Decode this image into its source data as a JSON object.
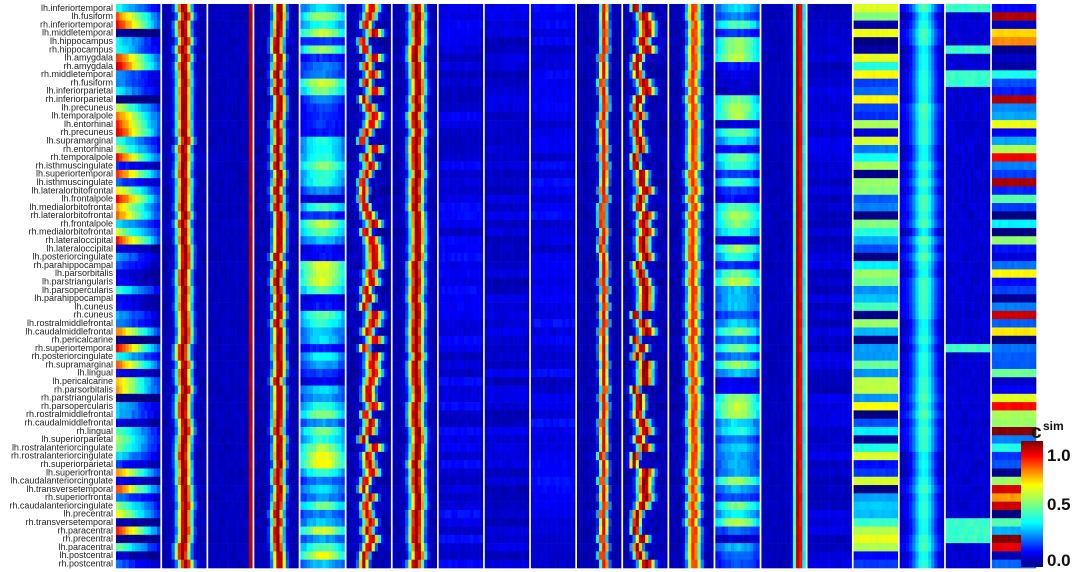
{
  "chart_data": {
    "type": "heatmap",
    "title": "",
    "xlabel": "",
    "ylabel": "",
    "rows": [
      "lh.inferiortemporal",
      "lh.fusiform",
      "rh.inferiortemporal",
      "lh.middletemporal",
      "lh.hippocampus",
      "rh.hippocampus",
      "lh.amygdala",
      "rh.amygdala",
      "rh.middletemporal",
      "rh.fusiform",
      "lh.inferiorparietal",
      "rh.inferiorparietal",
      "lh.precuneus",
      "lh.temporalpole",
      "lh.entorhinal",
      "rh.precuneus",
      "lh.supramarginal",
      "rh.entorhinal",
      "rh.temporalpole",
      "rh.isthmuscingulate",
      "lh.superiortemporal",
      "lh.isthmuscingulate",
      "lh.lateralorbitofrontal",
      "lh.frontalpole",
      "lh.medialorbitofrontal",
      "rh.lateralorbitofrontal",
      "rh.frontalpole",
      "rh.medialorbitofrontal",
      "rh.lateraloccipital",
      "lh.lateraloccipital",
      "lh.posteriorcingulate",
      "rh.parahippocampal",
      "lh.parsorbitalis",
      "lh.parstriangularis",
      "lh.parsopercularis",
      "lh.parahippocampal",
      "lh.cuneus",
      "rh.cuneus",
      "lh.rostralmiddlefrontal",
      "lh.caudalmiddlefrontal",
      "rh.pericalcarine",
      "rh.superiortemporal",
      "rh.posteriorcingulate",
      "rh.supramarginal",
      "lh.lingual",
      "lh.pericalcarine",
      "rh.parsorbitalis",
      "rh.parstriangularis",
      "rh.parsopercularis",
      "rh.rostralmiddlefrontal",
      "rh.caudalmiddlefrontal",
      "rh.lingual",
      "lh.superiorparietal",
      "lh.rostralanteriorcingulate",
      "rh.rostralanteriorcingulate",
      "rh.superiorparietal",
      "lh.superiorfrontal",
      "lh.caudalanteriorcingulate",
      "lh.transversetemporal",
      "rh.superiorfrontal",
      "rh.caudalanteriorcingulate",
      "lh.precentral",
      "rh.transversetemporal",
      "rh.paracentral",
      "rh.precentral",
      "lh.paracentral",
      "lh.postcentral",
      "rh.postcentral"
    ],
    "num_panels": 20,
    "panel_profiles": [
      {
        "kind": "left-fade",
        "base": 0.3,
        "variation": 0.55
      },
      {
        "kind": "peak",
        "center": 0.5,
        "width": 0.26,
        "peak": 1.0
      },
      {
        "kind": "edge-peak",
        "center": 0.97,
        "width": 0.06,
        "peak": 0.95
      },
      {
        "kind": "peak",
        "center": 0.55,
        "width": 0.22,
        "peak": 1.0
      },
      {
        "kind": "rows",
        "base": 0.22,
        "variation": 0.45
      },
      {
        "kind": "peak-var",
        "center": 0.5,
        "width": 0.22,
        "peak": 0.95
      },
      {
        "kind": "peak",
        "center": 0.55,
        "width": 0.26,
        "peak": 1.0
      },
      {
        "kind": "flat",
        "base": 0.1,
        "variation": 0.08
      },
      {
        "kind": "flat",
        "base": 0.08,
        "variation": 0.06
      },
      {
        "kind": "flat",
        "base": 0.1,
        "variation": 0.08
      },
      {
        "kind": "peak",
        "center": 0.6,
        "width": 0.16,
        "peak": 0.9
      },
      {
        "kind": "peak-var",
        "center": 0.4,
        "width": 0.22,
        "peak": 1.0
      },
      {
        "kind": "peak",
        "center": 0.55,
        "width": 0.24,
        "peak": 0.85
      },
      {
        "kind": "rows",
        "base": 0.2,
        "variation": 0.4
      },
      {
        "kind": "edge-peak",
        "center": 0.85,
        "width": 0.16,
        "peak": 1.0
      },
      {
        "kind": "flat",
        "base": 0.08,
        "variation": 0.06
      },
      {
        "kind": "rows-blocky",
        "base": 0.3,
        "variation": 0.35
      },
      {
        "kind": "center-glow",
        "center": 0.55,
        "width": 0.35,
        "peak": 0.35
      },
      {
        "kind": "flat-bands",
        "base": 0.08,
        "variation": 0.2
      },
      {
        "kind": "rows-blocky",
        "base": 0.45,
        "variation": 0.55
      }
    ],
    "colorbar": {
      "title": "c",
      "title_superscript": "sim",
      "min": 0.0,
      "max": 1.0,
      "ticks": [
        "1.0",
        "0.5",
        "0.0"
      ],
      "tick_values": [
        1.0,
        0.5,
        0.0
      ],
      "colormap": "jet"
    }
  }
}
